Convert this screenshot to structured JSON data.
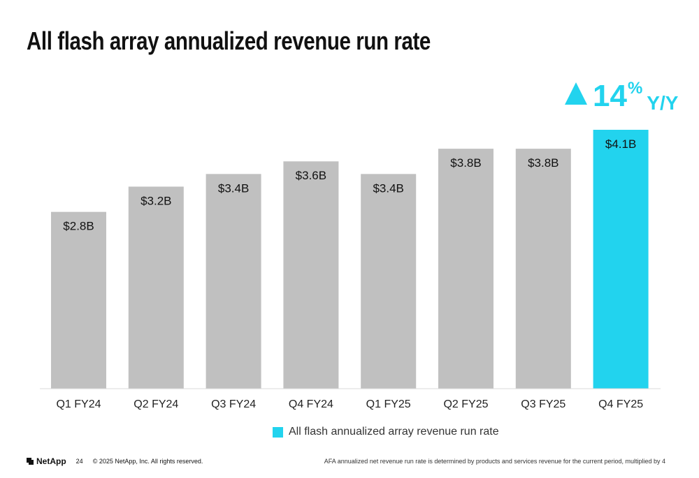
{
  "title": "All flash array annualized revenue run rate",
  "callout": {
    "number": "14",
    "percent": "%",
    "suffix": "Y/Y"
  },
  "chart_data": {
    "type": "bar",
    "categories": [
      "Q1 FY24",
      "Q2 FY24",
      "Q3 FY24",
      "Q4 FY24",
      "Q1 FY25",
      "Q2 FY25",
      "Q3 FY25",
      "Q4 FY25"
    ],
    "values": [
      2.8,
      3.2,
      3.4,
      3.6,
      3.4,
      3.8,
      3.8,
      4.1
    ],
    "labels": [
      "$2.8B",
      "$3.2B",
      "$3.4B",
      "$3.6B",
      "$3.4B",
      "$3.8B",
      "$3.8B",
      "$4.1B"
    ],
    "highlight_index": 7,
    "colors": {
      "default": "#c0c0c0",
      "highlight": "#22d3ee"
    },
    "ylim": [
      0,
      4.1
    ],
    "grid": false,
    "legend": {
      "placement": "bottom",
      "label": "All flash annualized array revenue run rate"
    }
  },
  "footer": {
    "logo": "NetApp",
    "page_number": "24",
    "copyright": "© 2025 NetApp, Inc. All rights reserved.",
    "note": "AFA annualized net revenue run rate is determined by products and services revenue for the current period, multiplied by 4"
  }
}
